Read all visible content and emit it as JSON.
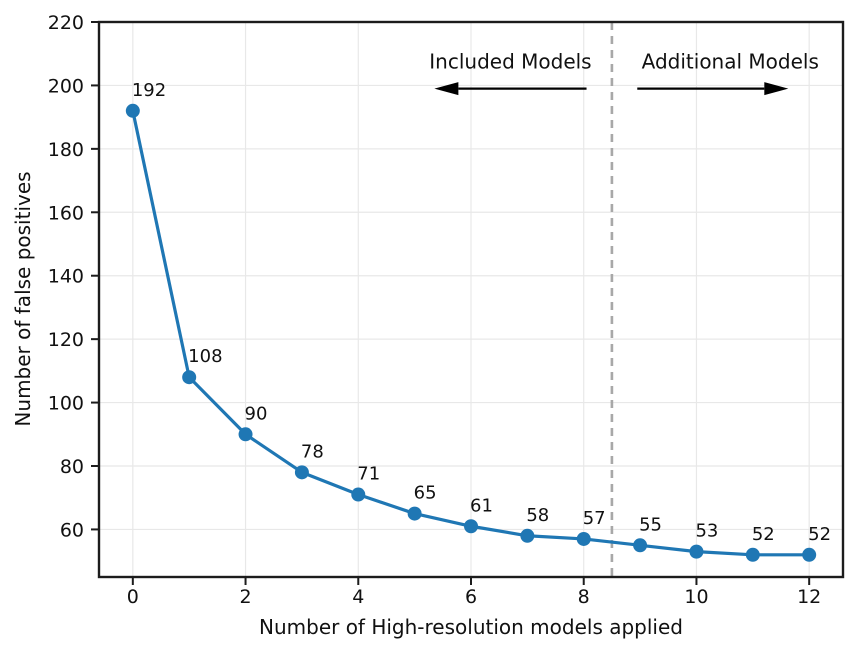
{
  "figure": {
    "background": "#ffffff",
    "accent_color": "#1f77b4",
    "grid_color": "#e8e8e8",
    "spine_color": "#1c1c1c",
    "divider_color": "#a8a8a8",
    "arrow_color": "#000000",
    "text_color": "#111111"
  },
  "chart_data": {
    "type": "line",
    "title": "",
    "xlabel": "Number of High-resolution models applied",
    "ylabel": "Number of false positives",
    "x": [
      0,
      1,
      2,
      3,
      4,
      5,
      6,
      7,
      8,
      9,
      10,
      11,
      12
    ],
    "values": [
      192,
      108,
      90,
      78,
      71,
      65,
      61,
      58,
      57,
      55,
      53,
      52,
      52
    ],
    "point_labels": [
      "192",
      "108",
      "90",
      "78",
      "71",
      "65",
      "61",
      "58",
      "57",
      "55",
      "53",
      "52",
      "52"
    ],
    "xlim": [
      -0.6,
      12.6
    ],
    "ylim": [
      45,
      220
    ],
    "xticks": [
      0,
      2,
      4,
      6,
      8,
      10,
      12
    ],
    "yticks": [
      60,
      80,
      100,
      120,
      140,
      160,
      180,
      200,
      220
    ],
    "grid": true,
    "legend": "none",
    "divider_x": 8.5,
    "annotations": [
      {
        "label": "Included Models",
        "text_x": 6.7,
        "text_y": 205.3,
        "arrow_from_x": 8.05,
        "arrow_to_x": 5.35,
        "arrow_y": 199,
        "direction": "left"
      },
      {
        "label": "Additional Models",
        "text_x": 10.6,
        "text_y": 205.3,
        "arrow_from_x": 8.95,
        "arrow_to_x": 11.63,
        "arrow_y": 199,
        "direction": "right"
      }
    ]
  }
}
